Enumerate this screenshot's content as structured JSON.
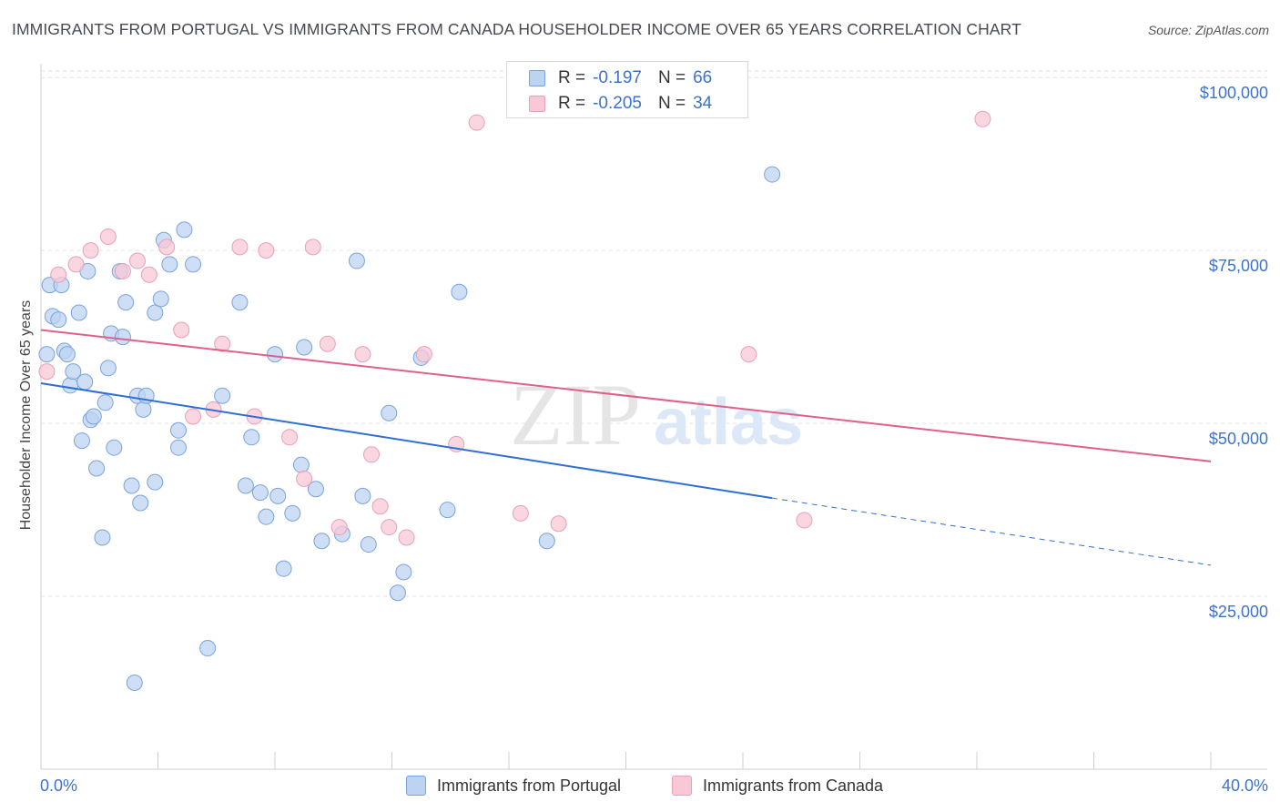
{
  "title": "IMMIGRANTS FROM PORTUGAL VS IMMIGRANTS FROM CANADA HOUSEHOLDER INCOME OVER 65 YEARS CORRELATION CHART",
  "source": "Source: ZipAtlas.com",
  "watermark": {
    "zip": "ZIP",
    "atlas": "atlas"
  },
  "legend": {
    "portugal": {
      "r_label": "R =",
      "r_value": "-0.197",
      "n_label": "N =",
      "n_value": "66"
    },
    "canada": {
      "r_label": "R =",
      "r_value": "-0.205",
      "n_label": "N =",
      "n_value": "34"
    }
  },
  "bottom_legend": {
    "portugal": "Immigrants from Portugal",
    "canada": "Immigrants from Canada"
  },
  "colors": {
    "portugal_fill": "#bcd3f2",
    "portugal_stroke": "#7aa3de",
    "portugal_line": "#2f6fd1",
    "canada_fill": "#f8c8d6",
    "canada_stroke": "#e8a0b8",
    "canada_line": "#e0608a",
    "axis_text": "#3d73cc",
    "grid": "#e3e3e3"
  },
  "chart_data": {
    "type": "scatter",
    "title": "IMMIGRANTS FROM PORTUGAL VS IMMIGRANTS FROM CANADA HOUSEHOLDER INCOME OVER 65 YEARS CORRELATION CHART",
    "xlabel": "",
    "ylabel": "Householder Income Over 65 years",
    "xlim": [
      0,
      40
    ],
    "ylim": [
      0,
      102000
    ],
    "x_tick_labels": [
      "0.0%",
      "40.0%"
    ],
    "y_ticks": [
      25000,
      50000,
      75000,
      100000
    ],
    "y_tick_labels": [
      "$25,000",
      "$50,000",
      "$75,000",
      "$100,000"
    ],
    "series": [
      {
        "name": "Immigrants from Portugal",
        "points": [
          [
            0.2,
            60000
          ],
          [
            0.3,
            70000
          ],
          [
            0.4,
            65500
          ],
          [
            0.6,
            65000
          ],
          [
            0.7,
            70000
          ],
          [
            0.8,
            60500
          ],
          [
            0.9,
            60000
          ],
          [
            1.0,
            55500
          ],
          [
            1.1,
            57500
          ],
          [
            1.3,
            66000
          ],
          [
            1.4,
            47500
          ],
          [
            1.5,
            56000
          ],
          [
            1.6,
            72000
          ],
          [
            1.7,
            50500
          ],
          [
            1.8,
            51000
          ],
          [
            1.9,
            43500
          ],
          [
            2.1,
            33500
          ],
          [
            2.2,
            53000
          ],
          [
            2.3,
            58000
          ],
          [
            2.4,
            63000
          ],
          [
            2.5,
            46500
          ],
          [
            2.7,
            72000
          ],
          [
            2.8,
            62500
          ],
          [
            2.9,
            67500
          ],
          [
            3.1,
            41000
          ],
          [
            3.2,
            12500
          ],
          [
            3.3,
            54000
          ],
          [
            3.4,
            38500
          ],
          [
            3.5,
            52000
          ],
          [
            3.6,
            54000
          ],
          [
            3.9,
            66000
          ],
          [
            3.9,
            41500
          ],
          [
            4.1,
            68000
          ],
          [
            4.2,
            76500
          ],
          [
            4.4,
            73000
          ],
          [
            4.7,
            49000
          ],
          [
            4.7,
            46500
          ],
          [
            4.9,
            78000
          ],
          [
            5.2,
            73000
          ],
          [
            5.7,
            17500
          ],
          [
            6.2,
            54000
          ],
          [
            6.8,
            67500
          ],
          [
            7.0,
            41000
          ],
          [
            7.2,
            48000
          ],
          [
            7.5,
            40000
          ],
          [
            7.7,
            36500
          ],
          [
            8.0,
            60000
          ],
          [
            8.1,
            39500
          ],
          [
            8.3,
            29000
          ],
          [
            8.6,
            37000
          ],
          [
            8.9,
            44000
          ],
          [
            9.0,
            61000
          ],
          [
            9.4,
            40500
          ],
          [
            9.6,
            33000
          ],
          [
            10.3,
            34000
          ],
          [
            10.8,
            73500
          ],
          [
            11.0,
            39500
          ],
          [
            11.2,
            32500
          ],
          [
            11.9,
            51500
          ],
          [
            12.2,
            25500
          ],
          [
            12.4,
            28500
          ],
          [
            13.0,
            59500
          ],
          [
            13.9,
            37500
          ],
          [
            14.3,
            69000
          ],
          [
            17.3,
            33000
          ],
          [
            25.0,
            86000
          ]
        ],
        "trend": {
          "x": [
            0,
            25.0
          ],
          "y": [
            55800,
            39200
          ],
          "dashed_to": [
            40,
            29500
          ]
        }
      },
      {
        "name": "Immigrants from Canada",
        "points": [
          [
            0.2,
            57500
          ],
          [
            0.6,
            71500
          ],
          [
            1.2,
            73000
          ],
          [
            1.7,
            75000
          ],
          [
            2.3,
            77000
          ],
          [
            2.8,
            72000
          ],
          [
            3.3,
            73500
          ],
          [
            3.7,
            71500
          ],
          [
            4.3,
            75500
          ],
          [
            4.8,
            63500
          ],
          [
            5.2,
            51000
          ],
          [
            5.9,
            52000
          ],
          [
            6.2,
            61500
          ],
          [
            6.8,
            75500
          ],
          [
            7.3,
            51000
          ],
          [
            7.7,
            75000
          ],
          [
            8.5,
            48000
          ],
          [
            9.0,
            42000
          ],
          [
            9.3,
            75500
          ],
          [
            9.8,
            61500
          ],
          [
            10.2,
            35000
          ],
          [
            11.0,
            60000
          ],
          [
            11.3,
            45500
          ],
          [
            11.6,
            38000
          ],
          [
            11.9,
            35000
          ],
          [
            12.5,
            33500
          ],
          [
            13.1,
            60000
          ],
          [
            14.2,
            47000
          ],
          [
            14.9,
            93500
          ],
          [
            16.4,
            37000
          ],
          [
            17.7,
            35500
          ],
          [
            24.2,
            60000
          ],
          [
            26.1,
            36000
          ],
          [
            32.2,
            94000
          ]
        ],
        "trend": {
          "x": [
            0,
            40
          ],
          "y": [
            63500,
            44500
          ]
        }
      }
    ]
  }
}
